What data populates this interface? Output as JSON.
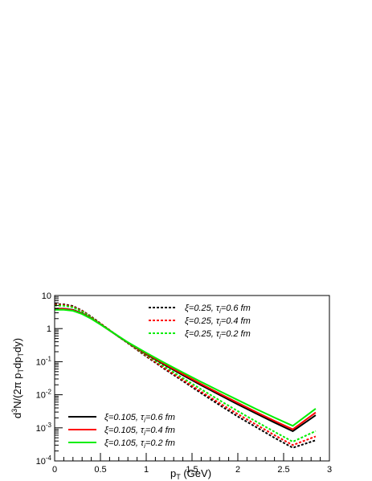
{
  "chart_data": {
    "type": "line",
    "title": "",
    "xlabel": {
      "main": "p",
      "sub": "T",
      "rest": " (GeV)"
    },
    "ylabel": {
      "parts": [
        {
          "t": "d",
          "s": "base"
        },
        {
          "t": "3",
          "s": "sup"
        },
        {
          "t": "N/(2π p",
          "s": "base"
        },
        {
          "t": "T",
          "s": "sub"
        },
        {
          "t": "dp",
          "s": "base"
        },
        {
          "t": "T",
          "s": "sub"
        },
        {
          "t": "dy)",
          "s": "base"
        }
      ]
    },
    "x_scale": "linear",
    "y_scale": "log",
    "xlim": [
      0,
      3
    ],
    "ylim": [
      0.0001,
      10
    ],
    "x_ticks": [
      {
        "v": 0,
        "label": "0"
      },
      {
        "v": 0.5,
        "label": "0.5"
      },
      {
        "v": 1,
        "label": "1"
      },
      {
        "v": 1.5,
        "label": "1.5"
      },
      {
        "v": 2,
        "label": "2"
      },
      {
        "v": 2.5,
        "label": "2.5"
      },
      {
        "v": 3,
        "label": "3"
      }
    ],
    "y_ticks": [
      {
        "v": 0.0001,
        "base": "10",
        "exp": "-4"
      },
      {
        "v": 0.001,
        "base": "10",
        "exp": "-3"
      },
      {
        "v": 0.01,
        "base": "10",
        "exp": "-2"
      },
      {
        "v": 0.1,
        "base": "10",
        "exp": "-1"
      },
      {
        "v": 1,
        "base": "1",
        "exp": ""
      },
      {
        "v": 10,
        "base": "10",
        "exp": ""
      }
    ],
    "grid": false,
    "series": [
      {
        "name": "ξ=0.25, τi=0.6 fm",
        "label": {
          "xi": "ξ=0.25, ",
          "tau": "τ",
          "tau_sub": "i",
          "rest": "=0.6 fm"
        },
        "color": "#000000",
        "dash": "dotted",
        "legend": "top",
        "x": [
          0,
          0.1,
          0.2,
          0.3,
          0.4,
          0.5,
          0.6,
          0.7,
          0.8,
          1.0,
          1.2,
          1.4,
          1.6,
          1.8,
          2.0,
          2.2,
          2.4,
          2.6,
          2.85
        ],
        "y": [
          5.5,
          5.4,
          4.8,
          3.5,
          2.3,
          1.45,
          0.9,
          0.57,
          0.36,
          0.145,
          0.06,
          0.026,
          0.0112,
          0.0049,
          0.0022,
          0.00105,
          0.0005,
          0.00025,
          0.00042
        ]
      },
      {
        "name": "ξ=0.25, τi=0.4 fm",
        "label": {
          "xi": "ξ=0.25, ",
          "tau": "τ",
          "tau_sub": "i",
          "rest": "=0.4 fm"
        },
        "color": "#ff0000",
        "dash": "dotted",
        "legend": "top",
        "x": [
          0,
          0.1,
          0.2,
          0.3,
          0.4,
          0.5,
          0.6,
          0.7,
          0.8,
          1.0,
          1.2,
          1.4,
          1.6,
          1.8,
          2.0,
          2.2,
          2.4,
          2.6,
          2.85
        ],
        "y": [
          5.3,
          5.2,
          4.6,
          3.4,
          2.25,
          1.43,
          0.9,
          0.57,
          0.365,
          0.15,
          0.064,
          0.028,
          0.0124,
          0.0056,
          0.0026,
          0.00125,
          0.0006,
          0.0003,
          0.00055
        ]
      },
      {
        "name": "ξ=0.25, τi=0.2 fm",
        "label": {
          "xi": "ξ=0.25, ",
          "tau": "τ",
          "tau_sub": "i",
          "rest": "=0.2 fm"
        },
        "color": "#00ee00",
        "dash": "dotted",
        "legend": "top",
        "x": [
          0,
          0.1,
          0.2,
          0.3,
          0.4,
          0.5,
          0.6,
          0.7,
          0.8,
          1.0,
          1.2,
          1.4,
          1.6,
          1.8,
          2.0,
          2.2,
          2.4,
          2.6,
          2.85
        ],
        "y": [
          5.0,
          4.9,
          4.4,
          3.25,
          2.2,
          1.4,
          0.89,
          0.57,
          0.37,
          0.16,
          0.071,
          0.032,
          0.0146,
          0.0068,
          0.0032,
          0.00155,
          0.00076,
          0.00038,
          0.0008
        ]
      },
      {
        "name": "ξ=0.105, τi=0.6 fm",
        "label": {
          "xi": "ξ=0.105, ",
          "tau": "τ",
          "tau_sub": "i",
          "rest": "=0.6 fm"
        },
        "color": "#000000",
        "dash": "solid",
        "legend": "bottom",
        "x": [
          0,
          0.1,
          0.2,
          0.3,
          0.4,
          0.5,
          0.6,
          0.7,
          0.8,
          1.0,
          1.2,
          1.4,
          1.6,
          1.8,
          2.0,
          2.2,
          2.4,
          2.6,
          2.85
        ],
        "y": [
          4.0,
          4.0,
          3.7,
          2.9,
          2.05,
          1.35,
          0.88,
          0.57,
          0.375,
          0.17,
          0.081,
          0.039,
          0.0195,
          0.0099,
          0.0051,
          0.0027,
          0.00145,
          0.00079,
          0.0024
        ]
      },
      {
        "name": "ξ=0.105, τi=0.4 fm",
        "label": {
          "xi": "ξ=0.105, ",
          "tau": "τ",
          "tau_sub": "i",
          "rest": "=0.4 fm"
        },
        "color": "#ff0000",
        "dash": "solid",
        "legend": "bottom",
        "x": [
          0,
          0.1,
          0.2,
          0.3,
          0.4,
          0.5,
          0.6,
          0.7,
          0.8,
          1.0,
          1.2,
          1.4,
          1.6,
          1.8,
          2.0,
          2.2,
          2.4,
          2.6,
          2.85
        ],
        "y": [
          3.9,
          3.9,
          3.6,
          2.85,
          2.03,
          1.35,
          0.88,
          0.575,
          0.38,
          0.175,
          0.085,
          0.042,
          0.0212,
          0.0109,
          0.0057,
          0.003,
          0.00163,
          0.0009,
          0.0029
        ]
      },
      {
        "name": "ξ=0.105, τi=0.2 fm",
        "label": {
          "xi": "ξ=0.105, ",
          "tau": "τ",
          "tau_sub": "i",
          "rest": "=0.2 fm"
        },
        "color": "#00ee00",
        "dash": "solid",
        "legend": "bottom",
        "x": [
          0,
          0.1,
          0.2,
          0.3,
          0.4,
          0.5,
          0.6,
          0.7,
          0.8,
          1.0,
          1.2,
          1.4,
          1.6,
          1.8,
          2.0,
          2.2,
          2.4,
          2.6,
          2.85
        ],
        "y": [
          3.7,
          3.7,
          3.45,
          2.75,
          1.98,
          1.33,
          0.88,
          0.58,
          0.385,
          0.185,
          0.092,
          0.047,
          0.0245,
          0.0129,
          0.0069,
          0.0037,
          0.00205,
          0.00115,
          0.0038
        ]
      }
    ]
  }
}
